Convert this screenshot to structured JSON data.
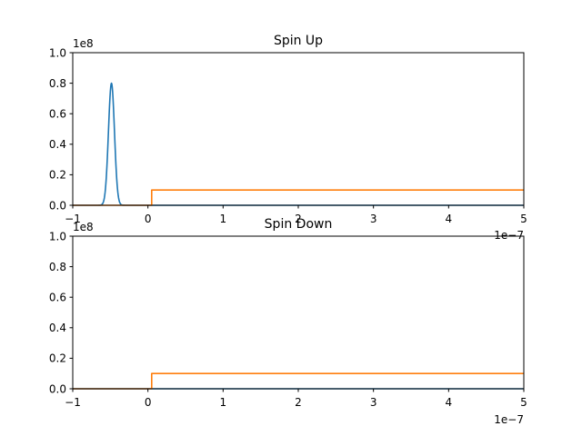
{
  "chart_data": [
    {
      "type": "line",
      "title": "Spin Up",
      "xlabel": "",
      "ylabel": "",
      "xlim": [
        -1e-07,
        5e-07
      ],
      "ylim": [
        0,
        100000000.0
      ],
      "xticks": [
        -1e-07,
        0,
        1e-07,
        2e-07,
        3e-07,
        4e-07,
        5e-07
      ],
      "xtick_labels": [
        "−1",
        "0",
        "1",
        "2",
        "3",
        "4",
        "5"
      ],
      "yticks": [
        0,
        20000000.0,
        40000000.0,
        60000000.0,
        80000000.0,
        100000000.0
      ],
      "ytick_labels": [
        "0.0",
        "0.2",
        "0.4",
        "0.6",
        "0.8",
        "1.0"
      ],
      "x_offset_label": "1e−7",
      "y_offset_label": "1e8",
      "grid": false,
      "series": [
        {
          "kind": "gaussian",
          "color": "#1f77b4",
          "center": -4.85e-08,
          "peak": 80000000.0,
          "sigma": 4e-09
        },
        {
          "kind": "step",
          "color": "#ff7f0e",
          "x": [
            -1e-07,
            5e-09,
            5e-09,
            5e-07
          ],
          "y": [
            0,
            0,
            10000000.0,
            10000000.0
          ]
        }
      ]
    },
    {
      "type": "line",
      "title": "Spin Down",
      "xlabel": "",
      "ylabel": "",
      "xlim": [
        -1e-07,
        5e-07
      ],
      "ylim": [
        0,
        100000000.0
      ],
      "xticks": [
        -1e-07,
        0,
        1e-07,
        2e-07,
        3e-07,
        4e-07,
        5e-07
      ],
      "xtick_labels": [
        "−1",
        "0",
        "1",
        "2",
        "3",
        "4",
        "5"
      ],
      "yticks": [
        0,
        20000000.0,
        40000000.0,
        60000000.0,
        80000000.0,
        100000000.0
      ],
      "ytick_labels": [
        "0.0",
        "0.2",
        "0.4",
        "0.6",
        "0.8",
        "1.0"
      ],
      "x_offset_label": "1e−7",
      "y_offset_label": "1e8",
      "grid": false,
      "series": [
        {
          "kind": "step",
          "color": "#1f77b4",
          "x": [
            -1e-07,
            5e-07
          ],
          "y": [
            0,
            0
          ]
        },
        {
          "kind": "step",
          "color": "#ff7f0e",
          "x": [
            -1e-07,
            5e-09,
            5e-09,
            5e-07
          ],
          "y": [
            0,
            0,
            10000000.0,
            10000000.0
          ]
        }
      ]
    }
  ]
}
